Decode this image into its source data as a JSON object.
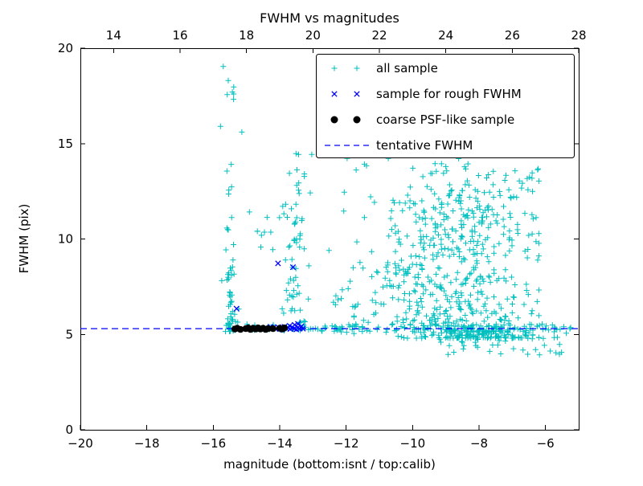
{
  "title": "FWHM vs magnitudes",
  "chart_data": {
    "type": "scatter",
    "title": "FWHM vs magnitudes",
    "xlabel": "magnitude (bottom:isnt / top:calib)",
    "ylabel": "FWHM (pix)",
    "xlim": [
      -20,
      -5
    ],
    "ylim": [
      0,
      20
    ],
    "x_ticks": [
      -20,
      -18,
      -16,
      -14,
      -12,
      -10,
      -8,
      -6
    ],
    "y_ticks": [
      0,
      5,
      10,
      15,
      20
    ],
    "top_axis": {
      "lim": [
        13,
        28
      ],
      "ticks": [
        14,
        16,
        18,
        20,
        22,
        24,
        26,
        28
      ]
    },
    "grid": false,
    "legend_position": "upper right",
    "colors": {
      "all_sample": "#00bfbf",
      "rough_fwhm": "#0000ff",
      "psf_like": "#000000",
      "tentative": "#0000ff",
      "frame": "#000000"
    },
    "tentative_fwhm_y": 5.3,
    "series": [
      {
        "name": "all sample",
        "marker": "+",
        "color": "#00bfbf",
        "note": "approx 1060 points; reconstructed from visible cluster structure",
        "clusters": [
          {
            "n": 55,
            "x": {
              "dist": "normal",
              "mean": -15.45,
              "sd": 0.09
            },
            "y": {
              "dist": "power",
              "base": 5.15,
              "range": 3.8,
              "exp": 2.0
            }
          },
          {
            "n": 20,
            "x": {
              "dist": "normal",
              "mean": -15.5,
              "sd": 0.15
            },
            "y": {
              "dist": "uniform",
              "min": 9,
              "max": 19.2
            }
          },
          {
            "n": 32,
            "x": {
              "dist": "normal",
              "mean": -13.55,
              "sd": 0.17
            },
            "y": {
              "dist": "power",
              "base": 5.6,
              "range": 4.2,
              "exp": 1.6
            }
          },
          {
            "n": 30,
            "x": {
              "dist": "normal",
              "mean": -13.5,
              "sd": 0.22
            },
            "y": {
              "dist": "normal",
              "mean": 11.4,
              "sd": 1.3,
              "clip": [
                9,
                14.6
              ]
            }
          },
          {
            "n": 10,
            "x": {
              "dist": "uniform",
              "min": -14.95,
              "max": -13.85
            },
            "y": {
              "dist": "uniform",
              "min": 9,
              "max": 11.8
            }
          },
          {
            "n": 34,
            "x": {
              "dist": "uniform",
              "min": -13.2,
              "max": -11.35
            },
            "y": {
              "dist": "power",
              "base": 5.4,
              "range": 9.2,
              "exp": 2.6
            }
          },
          {
            "n": 400,
            "x": {
              "dist": "normal",
              "mean": -8.2,
              "sd": 1.05,
              "clip": [
                -11.6,
                -6.2
              ]
            },
            "y": {
              "dist": "power",
              "base": 4.8,
              "range": 9.0,
              "exp": 2.3
            }
          },
          {
            "n": 150,
            "x": {
              "dist": "normal",
              "mean": -8.8,
              "sd": 1.15,
              "clip": [
                -11.6,
                -6.4
              ]
            },
            "y": {
              "dist": "normal",
              "mean": 10.8,
              "sd": 1.9,
              "clip": [
                8,
                15
              ]
            }
          },
          {
            "n": 110,
            "x": {
              "dist": "normal",
              "mean": -9.9,
              "sd": 0.85,
              "clip": [
                -11.8,
                -7.5
              ]
            },
            "y": {
              "dist": "normal",
              "mean": 7.3,
              "sd": 1.6,
              "clip": [
                4.8,
                12
              ]
            }
          },
          {
            "n": 45,
            "x": {
              "dist": "uniform",
              "min": -9.2,
              "max": -5.4
            },
            "y": {
              "dist": "uniform",
              "min": 3.9,
              "max": 5.0
            }
          },
          {
            "n": 55,
            "x": {
              "dist": "uniform",
              "min": -15.15,
              "max": -12.0
            },
            "y": {
              "dist": "normal",
              "mean": 5.32,
              "sd": 0.1
            }
          },
          {
            "n": 120,
            "x": {
              "dist": "uniform",
              "min": -12.0,
              "max": -5.2
            },
            "y": {
              "dist": "normal",
              "mean": 5.3,
              "sd": 0.13
            }
          }
        ]
      },
      {
        "name": "sample for rough FWHM",
        "marker": "x",
        "color": "#0000ff",
        "points": [
          [
            -14.05,
            8.72
          ],
          [
            -13.6,
            8.52
          ],
          [
            -15.3,
            6.35
          ],
          [
            -14.28,
            5.4
          ],
          [
            -14.2,
            5.32
          ],
          [
            -14.12,
            5.28
          ],
          [
            -14.05,
            5.38
          ],
          [
            -13.98,
            5.3
          ],
          [
            -13.92,
            5.26
          ],
          [
            -13.86,
            5.4
          ],
          [
            -13.8,
            5.3
          ],
          [
            -13.74,
            5.34
          ],
          [
            -13.68,
            5.28
          ],
          [
            -13.62,
            5.38
          ],
          [
            -13.56,
            5.3
          ],
          [
            -13.5,
            5.26
          ],
          [
            -13.45,
            5.36
          ],
          [
            -13.4,
            5.3
          ],
          [
            -13.35,
            5.42
          ],
          [
            -13.3,
            5.3
          ],
          [
            -13.55,
            5.5
          ],
          [
            -13.7,
            5.45
          ],
          [
            -13.45,
            5.55
          ]
        ]
      },
      {
        "name": "coarse PSF-like sample",
        "marker": "circle",
        "color": "#000000",
        "points": [
          [
            -15.35,
            5.28
          ],
          [
            -15.28,
            5.32
          ],
          [
            -15.18,
            5.26
          ],
          [
            -15.02,
            5.3
          ],
          [
            -14.95,
            5.34
          ],
          [
            -14.88,
            5.26
          ],
          [
            -14.8,
            5.32
          ],
          [
            -14.72,
            5.28
          ],
          [
            -14.65,
            5.34
          ],
          [
            -14.58,
            5.28
          ],
          [
            -14.5,
            5.32
          ],
          [
            -14.42,
            5.26
          ],
          [
            -14.35,
            5.3
          ],
          [
            -14.2,
            5.3
          ],
          [
            -14.0,
            5.32
          ],
          [
            -13.92,
            5.28
          ],
          [
            -13.86,
            5.34
          ]
        ]
      },
      {
        "name": "tentative FWHM",
        "marker": "dashed-line",
        "color": "#0000ff",
        "y": 5.3
      }
    ]
  }
}
